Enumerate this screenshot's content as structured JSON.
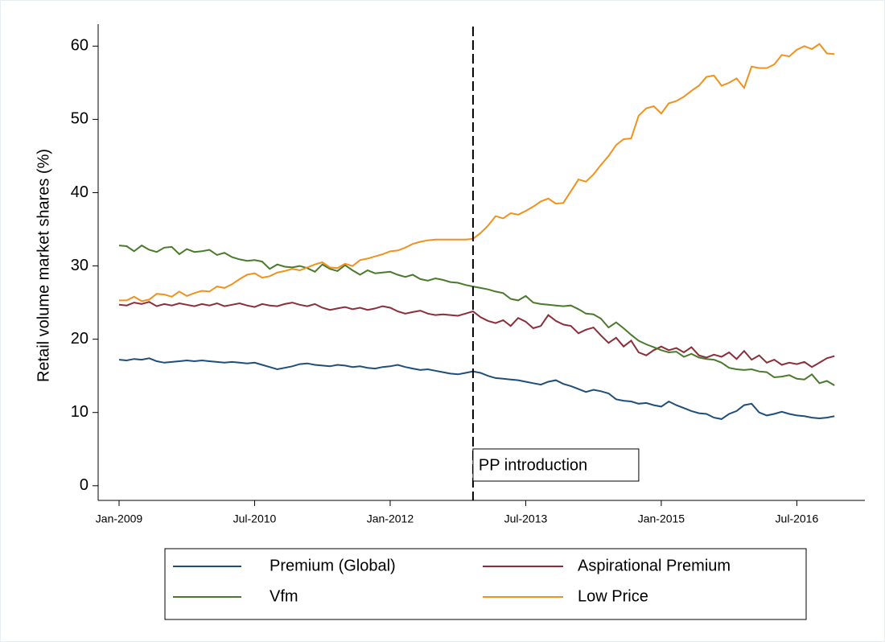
{
  "chart_data": {
    "type": "line",
    "y_label": "Retail volume market shares (%)",
    "x": [
      "Jan-2009",
      "Feb-2009",
      "Mar-2009",
      "Apr-2009",
      "May-2009",
      "Jun-2009",
      "Jul-2009",
      "Aug-2009",
      "Sep-2009",
      "Oct-2009",
      "Nov-2009",
      "Dec-2009",
      "Jan-2010",
      "Feb-2010",
      "Mar-2010",
      "Apr-2010",
      "May-2010",
      "Jun-2010",
      "Jul-2010",
      "Aug-2010",
      "Sep-2010",
      "Oct-2010",
      "Nov-2010",
      "Dec-2010",
      "Jan-2011",
      "Feb-2011",
      "Mar-2011",
      "Apr-2011",
      "May-2011",
      "Jun-2011",
      "Jul-2011",
      "Aug-2011",
      "Sep-2011",
      "Oct-2011",
      "Nov-2011",
      "Dec-2011",
      "Jan-2012",
      "Feb-2012",
      "Mar-2012",
      "Apr-2012",
      "May-2012",
      "Jun-2012",
      "Jul-2012",
      "Aug-2012",
      "Sep-2012",
      "Oct-2012",
      "Nov-2012",
      "Dec-2012",
      "Jan-2013",
      "Feb-2013",
      "Mar-2013",
      "Apr-2013",
      "May-2013",
      "Jun-2013",
      "Jul-2013",
      "Aug-2013",
      "Sep-2013",
      "Oct-2013",
      "Nov-2013",
      "Dec-2013",
      "Jan-2014",
      "Feb-2014",
      "Mar-2014",
      "Apr-2014",
      "May-2014",
      "Jun-2014",
      "Jul-2014",
      "Aug-2014",
      "Sep-2014",
      "Oct-2014",
      "Nov-2014",
      "Dec-2014",
      "Jan-2015",
      "Feb-2015",
      "Mar-2015",
      "Apr-2015",
      "May-2015",
      "Jun-2015",
      "Jul-2015",
      "Aug-2015",
      "Sep-2015",
      "Oct-2015",
      "Nov-2015",
      "Dec-2015",
      "Jan-2016",
      "Feb-2016",
      "Mar-2016",
      "Apr-2016",
      "May-2016",
      "Jun-2016",
      "Jul-2016",
      "Aug-2016",
      "Sep-2016",
      "Oct-2016",
      "Nov-2016",
      "Dec-2016"
    ],
    "xticks": [
      "Jan-2009",
      "Jul-2010",
      "Jan-2012",
      "Jul-2013",
      "Jan-2015",
      "Jul-2016"
    ],
    "ylim": [
      -2,
      63
    ],
    "yticks": [
      0,
      10,
      20,
      30,
      40,
      50,
      60
    ],
    "annotation": {
      "text": "PP introduction",
      "x": "Dec-2012"
    },
    "series": [
      {
        "name": "Premium (Global)",
        "color": "#1f4e79",
        "values": [
          17.2,
          17.1,
          17.3,
          17.2,
          17.4,
          17.0,
          16.8,
          16.9,
          17.0,
          17.1,
          17.0,
          17.1,
          17.0,
          16.9,
          16.8,
          16.9,
          16.8,
          16.7,
          16.8,
          16.5,
          16.2,
          15.9,
          16.1,
          16.3,
          16.6,
          16.7,
          16.5,
          16.4,
          16.3,
          16.5,
          16.4,
          16.2,
          16.3,
          16.1,
          16.0,
          16.2,
          16.3,
          16.5,
          16.2,
          16.0,
          15.8,
          15.9,
          15.7,
          15.5,
          15.3,
          15.2,
          15.4,
          15.6,
          15.4,
          15.0,
          14.7,
          14.6,
          14.5,
          14.4,
          14.2,
          14.0,
          13.8,
          14.2,
          14.4,
          13.9,
          13.6,
          13.2,
          12.8,
          13.1,
          12.9,
          12.6,
          11.8,
          11.6,
          11.5,
          11.2,
          11.3,
          11.0,
          10.8,
          11.5,
          11.0,
          10.6,
          10.2,
          9.9,
          9.8,
          9.3,
          9.1,
          9.8,
          10.2,
          11.0,
          11.2,
          10.0,
          9.6,
          9.8,
          10.1,
          9.8,
          9.6,
          9.5,
          9.3,
          9.2,
          9.3,
          9.5
        ]
      },
      {
        "name": "Aspirational Premium",
        "color": "#8b2e3a",
        "values": [
          24.7,
          24.6,
          25.0,
          24.8,
          25.1,
          24.5,
          24.8,
          24.6,
          24.9,
          24.7,
          24.5,
          24.8,
          24.6,
          24.9,
          24.5,
          24.7,
          24.9,
          24.6,
          24.4,
          24.8,
          24.6,
          24.5,
          24.8,
          25.0,
          24.7,
          24.5,
          24.8,
          24.3,
          24.0,
          24.2,
          24.4,
          24.1,
          24.3,
          24.0,
          24.2,
          24.5,
          24.3,
          23.8,
          23.5,
          23.7,
          23.9,
          23.5,
          23.3,
          23.4,
          23.3,
          23.2,
          23.5,
          23.8,
          23.0,
          22.5,
          22.2,
          22.6,
          21.8,
          22.9,
          22.4,
          21.5,
          21.8,
          23.3,
          22.5,
          22.0,
          21.8,
          20.8,
          21.3,
          21.6,
          20.5,
          19.5,
          20.2,
          19.0,
          19.8,
          18.2,
          17.8,
          18.5,
          19.0,
          18.5,
          18.8,
          18.2,
          18.9,
          17.8,
          17.5,
          17.9,
          17.6,
          18.2,
          17.3,
          18.4,
          17.2,
          17.8,
          16.8,
          17.2,
          16.5,
          16.8,
          16.6,
          16.9,
          16.2,
          16.8,
          17.4,
          17.7
        ]
      },
      {
        "name": "Vfm",
        "color": "#4a7a2c",
        "values": [
          32.8,
          32.7,
          32.0,
          32.8,
          32.2,
          31.9,
          32.5,
          32.6,
          31.6,
          32.3,
          31.9,
          32.0,
          32.2,
          31.5,
          31.8,
          31.2,
          30.9,
          30.7,
          30.8,
          30.6,
          29.6,
          30.2,
          29.9,
          29.8,
          30.0,
          29.7,
          29.2,
          30.2,
          29.6,
          29.3,
          30.1,
          29.4,
          28.8,
          29.4,
          29.0,
          29.1,
          29.2,
          28.8,
          28.5,
          28.8,
          28.2,
          28.0,
          28.3,
          28.1,
          27.8,
          27.7,
          27.4,
          27.2,
          27.0,
          26.8,
          26.5,
          26.3,
          25.5,
          25.3,
          25.9,
          25.0,
          24.8,
          24.7,
          24.6,
          24.5,
          24.6,
          24.1,
          23.5,
          23.4,
          22.8,
          21.6,
          22.3,
          21.5,
          20.6,
          19.8,
          19.3,
          18.9,
          18.5,
          18.2,
          18.3,
          17.6,
          18.0,
          17.5,
          17.3,
          17.2,
          16.8,
          16.1,
          15.9,
          15.8,
          15.9,
          15.6,
          15.5,
          14.8,
          14.9,
          15.1,
          14.6,
          14.5,
          15.2,
          14.0,
          14.3,
          13.7
        ]
      },
      {
        "name": "Low Price",
        "color": "#f0921e",
        "values": [
          25.3,
          25.3,
          25.8,
          25.2,
          25.4,
          26.2,
          26.1,
          25.8,
          26.5,
          25.9,
          26.3,
          26.6,
          26.5,
          27.2,
          27.0,
          27.5,
          28.2,
          28.8,
          29.0,
          28.4,
          28.6,
          29.1,
          29.3,
          29.6,
          29.4,
          29.8,
          30.2,
          30.5,
          29.8,
          29.7,
          30.3,
          30.0,
          30.8,
          31.0,
          31.3,
          31.6,
          32.0,
          32.1,
          32.5,
          33.0,
          33.3,
          33.5,
          33.6,
          33.6,
          33.6,
          33.6,
          33.6,
          33.7,
          34.5,
          35.5,
          36.8,
          36.5,
          37.2,
          37.0,
          37.5,
          38.1,
          38.8,
          39.2,
          38.5,
          38.6,
          40.2,
          41.8,
          41.5,
          42.5,
          43.8,
          45.0,
          46.5,
          47.3,
          47.4,
          50.5,
          51.5,
          51.8,
          50.8,
          52.2,
          52.5,
          53.1,
          53.9,
          54.6,
          55.8,
          56.0,
          54.6,
          55.0,
          55.6,
          54.3,
          57.2,
          57.0,
          57.0,
          57.5,
          58.8,
          58.6,
          59.5,
          60.0,
          59.6,
          60.3,
          59.0,
          58.9
        ]
      }
    ]
  }
}
